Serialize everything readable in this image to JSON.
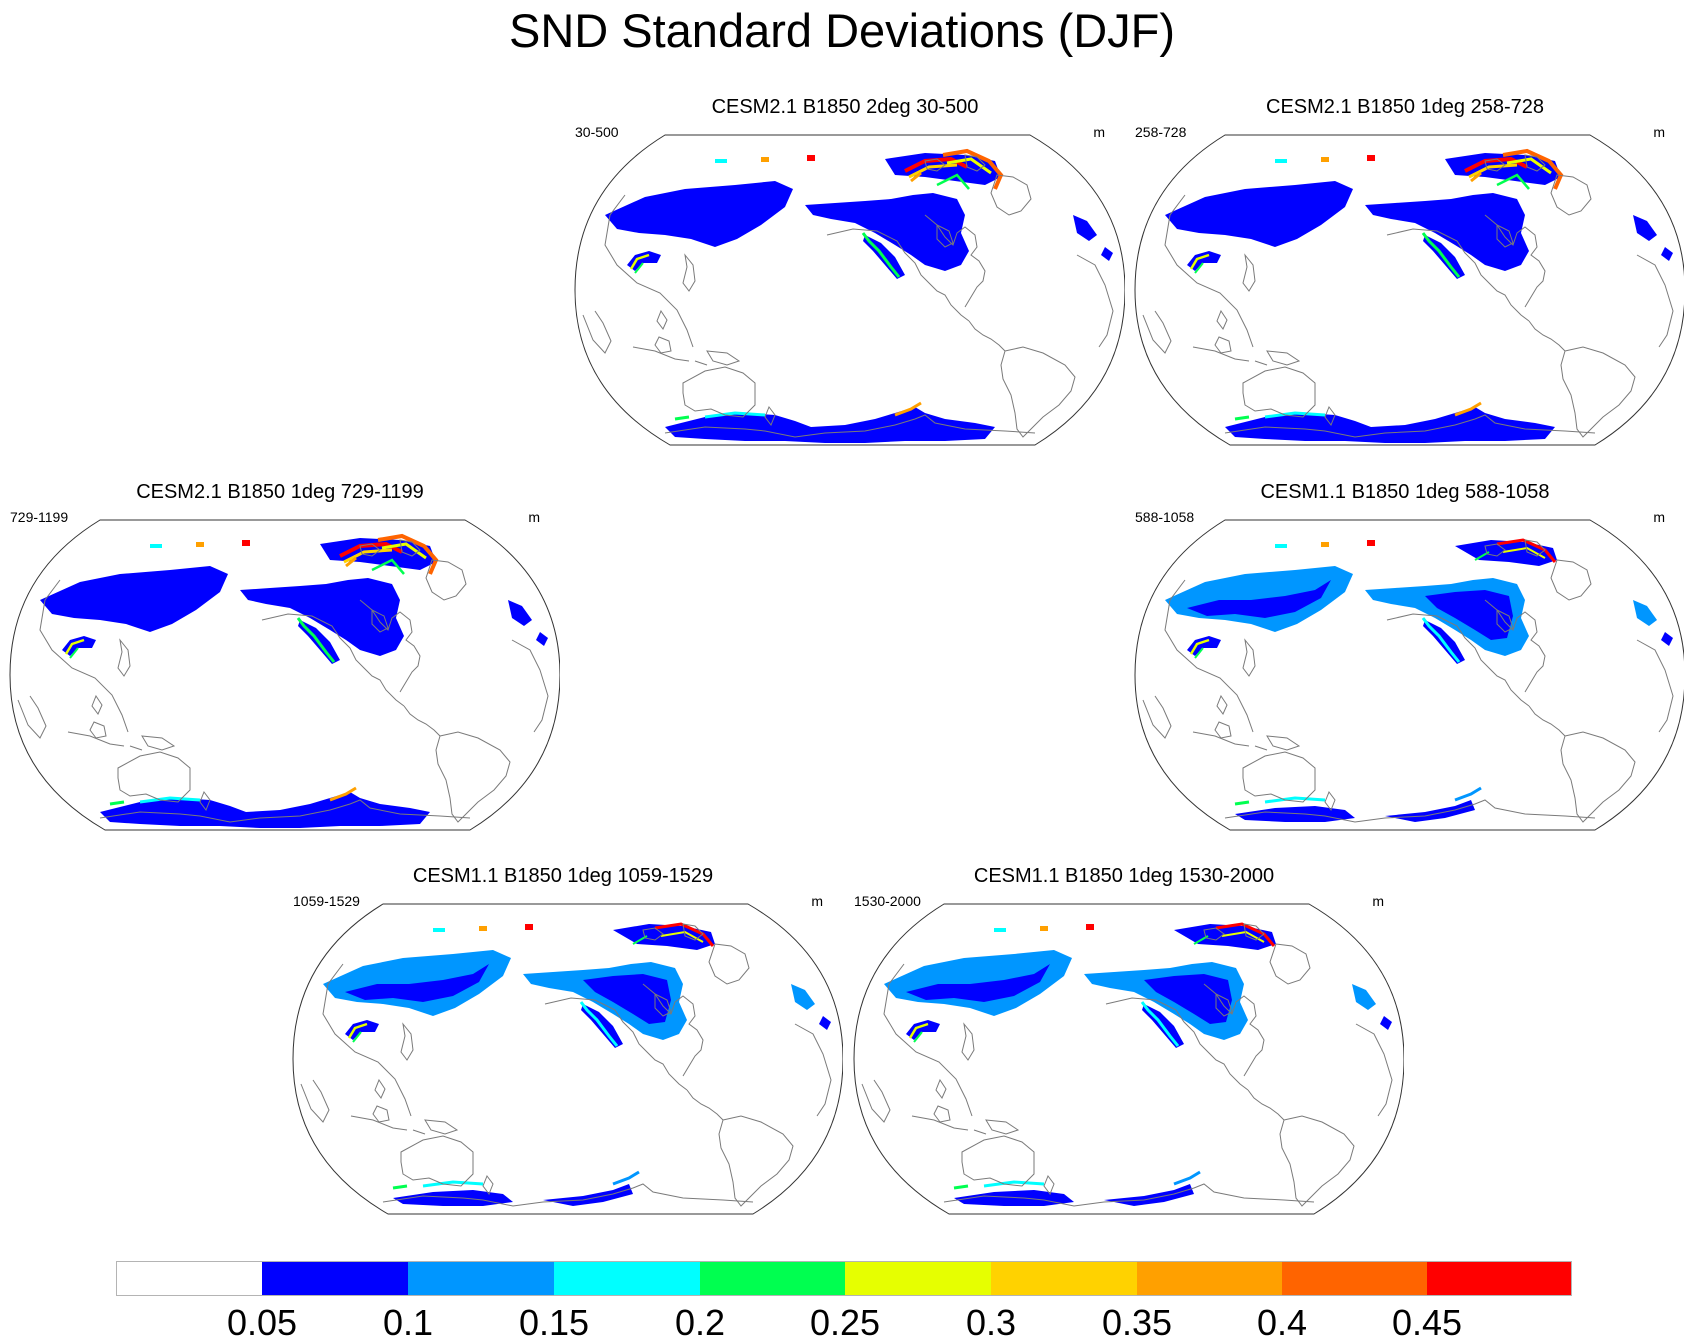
{
  "figure": {
    "title": "SND Standard Deviations (DJF)"
  },
  "panels": [
    {
      "title": "CESM2.1 B1850 2deg 30-500",
      "years": "30-500",
      "units": "m",
      "variant": 0
    },
    {
      "title": "CESM2.1 B1850 1deg 258-728",
      "years": "258-728",
      "units": "m",
      "variant": 1
    },
    {
      "title": "CESM2.1 B1850 1deg 729-1199",
      "years": "729-1199",
      "units": "m",
      "variant": 2
    },
    {
      "title": "CESM1.1 B1850 1deg 588-1058",
      "years": "588-1058",
      "units": "m",
      "variant": 3
    },
    {
      "title": "CESM1.1 B1850 1deg 1059-1529",
      "years": "1059-1529",
      "units": "m",
      "variant": 4
    },
    {
      "title": "CESM1.1 B1850 1deg 1530-2000",
      "years": "1530-2000",
      "units": "m",
      "variant": 5
    }
  ],
  "colorbar": {
    "labels": [
      "0.05",
      "0.1",
      "0.15",
      "0.2",
      "0.25",
      "0.3",
      "0.35",
      "0.4",
      "0.45"
    ],
    "colors": [
      "#ffffff",
      "#0000ff",
      "#0096ff",
      "#00ffff",
      "#00ff50",
      "#e6ff00",
      "#ffd200",
      "#ffa000",
      "#ff6400",
      "#ff0000"
    ]
  }
}
